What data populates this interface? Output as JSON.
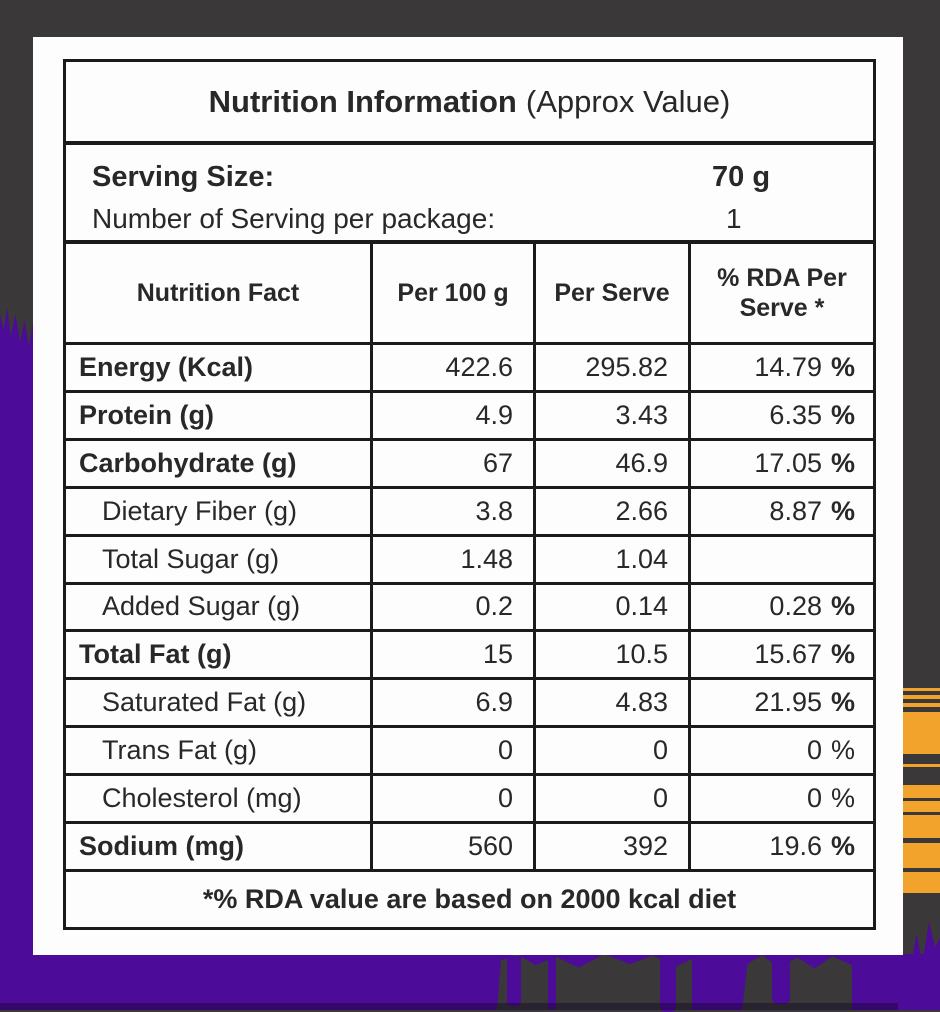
{
  "title": {
    "bold": "Nutrition Information",
    "regular": "(Approx Value)"
  },
  "serving": {
    "size_label": "Serving Size:",
    "size_value": "70 g",
    "count_label": "Number of Serving per package:",
    "count_value": "1"
  },
  "table": {
    "columns": [
      "Nutrition Fact",
      "Per 100 g",
      "Per Serve",
      "% RDA Per Serve *"
    ],
    "rows": [
      {
        "name": "Energy (Kcal)",
        "per100": "422.6",
        "per_serve": "295.82",
        "rda": "14.79",
        "rda_unit": "%"
      },
      {
        "name": "Protein (g)",
        "per100": "4.9",
        "per_serve": "3.43",
        "rda": "6.35",
        "rda_unit": "%"
      },
      {
        "name": "Carbohydrate (g)",
        "per100": "67",
        "per_serve": "46.9",
        "rda": "17.05",
        "rda_unit": "%"
      },
      {
        "name": "Dietary Fiber (g)",
        "per100": "3.8",
        "per_serve": "2.66",
        "rda": "8.87",
        "rda_unit": "%"
      },
      {
        "name": "Total Sugar (g)",
        "per100": "1.48",
        "per_serve": "1.04",
        "rda": "",
        "rda_unit": ""
      },
      {
        "name": "Added Sugar (g)",
        "per100": "0.2",
        "per_serve": "0.14",
        "rda": "0.28",
        "rda_unit": "%"
      },
      {
        "name": "Total Fat (g)",
        "per100": "15",
        "per_serve": "10.5",
        "rda": "15.67",
        "rda_unit": "%"
      },
      {
        "name": "Saturated Fat (g)",
        "per100": "6.9",
        "per_serve": "4.83",
        "rda": "21.95",
        "rda_unit": "%"
      },
      {
        "name": "Trans Fat (g)",
        "per100": "0",
        "per_serve": "0",
        "rda": "0",
        "rda_unit": "%"
      },
      {
        "name": "Cholesterol (mg)",
        "per100": "0",
        "per_serve": "0",
        "rda": "0",
        "rda_unit": "%"
      },
      {
        "name": "Sodium (mg)",
        "per100": "560",
        "per_serve": "392",
        "rda": "19.6",
        "rda_unit": "%"
      }
    ]
  },
  "footnote": "*% RDA value are based on 2000 kcal diet",
  "colors": {
    "background": "#3b3839",
    "purple": "#4c0b99",
    "orange": "#f2a32c",
    "card": "#fdfdfd",
    "border": "#1b1b1b",
    "text": "#282828"
  }
}
